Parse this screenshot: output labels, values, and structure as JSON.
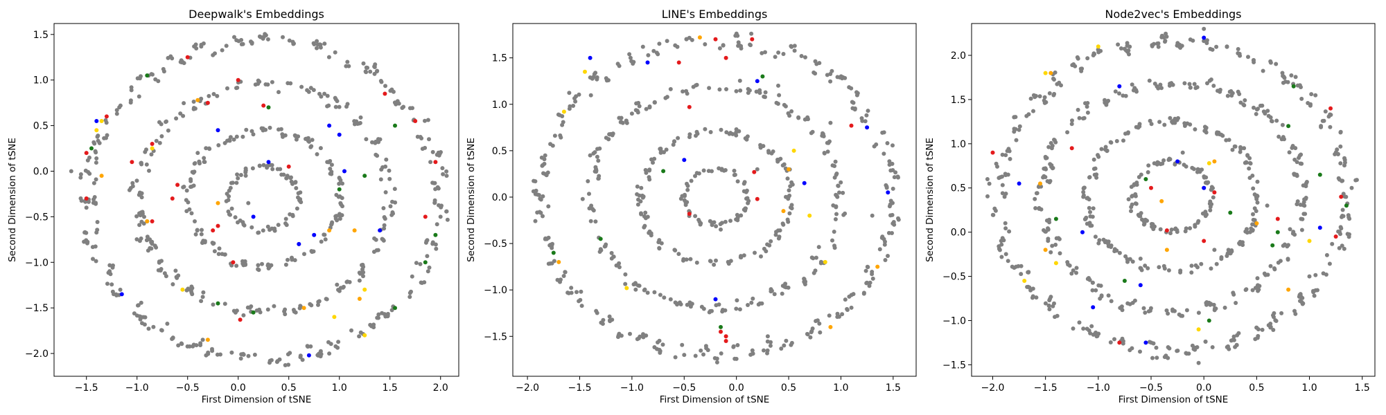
{
  "chart_data": [
    {
      "type": "scatter",
      "title": "Deepwalk's Embeddings",
      "xlabel": "First Dimension of tSNE",
      "ylabel": "Second Dimension of tSNE",
      "xlim": [
        -1.82,
        2.18
      ],
      "ylim": [
        -2.25,
        1.62
      ],
      "xticks": [
        -1.5,
        -1.0,
        -0.5,
        0.0,
        0.5,
        1.0,
        1.5,
        2.0
      ],
      "xtick_labels": [
        "−1.5",
        "−1.0",
        "−0.5",
        "0.0",
        "0.5",
        "1.0",
        "1.5",
        "2.0"
      ],
      "yticks": [
        -2.0,
        -1.5,
        -1.0,
        -0.5,
        0.0,
        0.5,
        1.0,
        1.5
      ],
      "ytick_labels": [
        "−2.0",
        "−1.5",
        "−1.0",
        "−0.5",
        "0.0",
        "0.5",
        "1.0",
        "1.5"
      ],
      "seed": 11,
      "rings": [
        {
          "radius": 1.75,
          "count": 150
        },
        {
          "radius": 1.25,
          "count": 115
        },
        {
          "radius": 0.75,
          "count": 75
        },
        {
          "radius": 0.35,
          "count": 40
        }
      ],
      "center": [
        0.25,
        -0.3
      ],
      "scale": [
        1.0,
        1.0
      ],
      "series": [
        {
          "color": "#808080",
          "points": [
            [
              -1.65,
              0.0
            ],
            [
              -1.5,
              -0.3
            ],
            [
              -1.5,
              -0.4
            ],
            [
              2.0,
              -0.5
            ],
            [
              1.9,
              0.1
            ],
            [
              0.55,
              1.4
            ],
            [
              0.9,
              -2.0
            ],
            [
              -0.35,
              -1.85
            ],
            [
              1.2,
              -1.2
            ],
            [
              0.6,
              -0.8
            ],
            [
              -0.9,
              -0.55
            ],
            [
              0.1,
              -0.35
            ],
            [
              -0.4,
              0.2
            ]
          ]
        },
        {
          "color": "#e41a1c",
          "points": [
            [
              0.0,
              1.0
            ],
            [
              -0.5,
              1.25
            ],
            [
              -1.3,
              0.6
            ],
            [
              -0.85,
              0.3
            ],
            [
              -1.5,
              0.2
            ],
            [
              -1.05,
              0.1
            ],
            [
              -0.6,
              -0.15
            ],
            [
              -0.85,
              -0.55
            ],
            [
              -0.25,
              -0.65
            ],
            [
              -0.2,
              -0.6
            ],
            [
              -0.05,
              -1.0
            ],
            [
              0.02,
              -1.63
            ],
            [
              0.5,
              0.05
            ],
            [
              0.25,
              0.72
            ],
            [
              1.95,
              0.1
            ],
            [
              1.75,
              0.55
            ],
            [
              1.85,
              -0.5
            ],
            [
              1.45,
              0.85
            ],
            [
              -0.3,
              0.75
            ],
            [
              -1.5,
              -0.3
            ],
            [
              -0.65,
              -0.3
            ]
          ]
        },
        {
          "color": "#0000ff",
          "points": [
            [
              -0.2,
              0.45
            ],
            [
              0.15,
              -0.5
            ],
            [
              0.3,
              0.1
            ],
            [
              0.9,
              0.5
            ],
            [
              1.0,
              0.4
            ],
            [
              1.4,
              -0.65
            ],
            [
              0.75,
              -0.7
            ],
            [
              0.7,
              -2.02
            ],
            [
              -1.4,
              0.55
            ],
            [
              -1.15,
              -1.35
            ],
            [
              0.6,
              -0.8
            ],
            [
              1.05,
              0.0
            ]
          ]
        },
        {
          "color": "#ffa500",
          "points": [
            [
              -1.35,
              -0.05
            ],
            [
              -0.2,
              -0.35
            ],
            [
              -0.9,
              -0.55
            ],
            [
              0.9,
              -0.65
            ],
            [
              1.15,
              -0.65
            ],
            [
              1.2,
              -1.4
            ],
            [
              -0.3,
              -1.85
            ],
            [
              0.65,
              -1.5
            ],
            [
              -0.4,
              0.78
            ]
          ]
        },
        {
          "color": "#ffd700",
          "points": [
            [
              -1.35,
              0.55
            ],
            [
              -0.85,
              0.25
            ],
            [
              1.25,
              -1.3
            ],
            [
              1.25,
              -1.8
            ],
            [
              0.95,
              -1.6
            ],
            [
              -0.55,
              -1.3
            ],
            [
              -1.4,
              0.45
            ]
          ]
        },
        {
          "color": "#1a7a1a",
          "points": [
            [
              -1.45,
              0.25
            ],
            [
              -0.2,
              -1.45
            ],
            [
              0.15,
              -1.55
            ],
            [
              1.0,
              -0.2
            ],
            [
              1.25,
              -0.05
            ],
            [
              1.55,
              0.5
            ],
            [
              1.55,
              -1.5
            ],
            [
              1.95,
              -0.7
            ],
            [
              1.85,
              -1.0
            ],
            [
              0.3,
              0.7
            ],
            [
              -0.9,
              1.05
            ]
          ]
        }
      ]
    },
    {
      "type": "scatter",
      "title": "LINE's Embeddings",
      "xlabel": "First Dimension of tSNE",
      "ylabel": "Second Dimension of tSNE",
      "xlim": [
        -2.14,
        1.72
      ],
      "ylim": [
        -1.93,
        1.87
      ],
      "xticks": [
        -2.0,
        -1.5,
        -1.0,
        -0.5,
        0.0,
        0.5,
        1.0,
        1.5
      ],
      "xtick_labels": [
        "−2.0",
        "−1.5",
        "−1.0",
        "−0.5",
        "0.0",
        "0.5",
        "1.0",
        "1.5"
      ],
      "yticks": [
        -1.5,
        -1.0,
        -0.5,
        0.0,
        0.5,
        1.0,
        1.5
      ],
      "ytick_labels": [
        "−1.5",
        "−1.0",
        "−0.5",
        "0.0",
        "0.5",
        "1.0",
        "1.5"
      ],
      "seed": 23,
      "rings": [
        {
          "radius": 1.7,
          "count": 145
        },
        {
          "radius": 1.2,
          "count": 105
        },
        {
          "radius": 0.72,
          "count": 70
        },
        {
          "radius": 0.3,
          "count": 35
        }
      ],
      "center": [
        -0.2,
        0.0
      ],
      "scale": [
        1.0,
        1.0
      ],
      "series": [
        {
          "color": "#808080",
          "points": [
            [
              -1.4,
              0.45
            ],
            [
              -1.0,
              0.9
            ],
            [
              0.4,
              1.2
            ],
            [
              0.9,
              0.8
            ],
            [
              1.3,
              -0.2
            ],
            [
              -0.5,
              -1.7
            ],
            [
              0.3,
              -1.5
            ],
            [
              -1.8,
              -0.1
            ],
            [
              -0.15,
              -0.35
            ],
            [
              0.2,
              0.3
            ]
          ]
        },
        {
          "color": "#e41a1c",
          "points": [
            [
              -0.1,
              1.5
            ],
            [
              -0.55,
              1.45
            ],
            [
              0.15,
              1.7
            ],
            [
              -0.2,
              1.7
            ],
            [
              1.1,
              0.77
            ],
            [
              0.2,
              -0.02
            ],
            [
              0.17,
              0.27
            ],
            [
              -0.1,
              -1.5
            ],
            [
              -0.15,
              -1.45
            ],
            [
              -0.45,
              0.97
            ],
            [
              -0.45,
              -0.18
            ],
            [
              -0.1,
              -1.55
            ]
          ]
        },
        {
          "color": "#0000ff",
          "points": [
            [
              -1.4,
              1.5
            ],
            [
              0.2,
              1.25
            ],
            [
              -0.5,
              0.4
            ],
            [
              -0.2,
              -1.1
            ],
            [
              1.25,
              0.75
            ],
            [
              1.45,
              0.05
            ],
            [
              0.65,
              0.15
            ],
            [
              -0.85,
              1.45
            ]
          ]
        },
        {
          "color": "#ffa500",
          "points": [
            [
              -0.35,
              1.72
            ],
            [
              0.45,
              -0.15
            ],
            [
              1.35,
              -0.75
            ],
            [
              0.9,
              -1.4
            ],
            [
              -1.7,
              -0.7
            ],
            [
              0.5,
              0.3
            ]
          ]
        },
        {
          "color": "#ffd700",
          "points": [
            [
              -1.65,
              0.92
            ],
            [
              0.7,
              -0.2
            ],
            [
              0.85,
              -0.7
            ],
            [
              -1.05,
              -0.98
            ],
            [
              0.55,
              0.5
            ],
            [
              -1.45,
              1.35
            ]
          ]
        },
        {
          "color": "#1a7a1a",
          "points": [
            [
              -1.3,
              -0.45
            ],
            [
              -1.75,
              -0.6
            ],
            [
              -0.7,
              0.28
            ],
            [
              0.25,
              1.3
            ],
            [
              -0.15,
              -1.4
            ]
          ]
        }
      ]
    },
    {
      "type": "scatter",
      "title": "Node2vec's Embeddings",
      "xlabel": "First Dimension of tSNE",
      "ylabel": "Second Dimension of tSNE",
      "xlim": [
        -2.2,
        1.62
      ],
      "ylim": [
        -1.63,
        2.36
      ],
      "xticks": [
        -2.0,
        -1.5,
        -1.0,
        -0.5,
        0.0,
        0.5,
        1.0,
        1.5
      ],
      "xtick_labels": [
        "−2.0",
        "−1.5",
        "−1.0",
        "−0.5",
        "0.0",
        "0.5",
        "1.0",
        "1.5"
      ],
      "yticks": [
        -1.5,
        -1.0,
        -0.5,
        0.0,
        0.5,
        1.0,
        1.5,
        2.0
      ],
      "ytick_labels": [
        "−1.5",
        "−1.0",
        "−0.5",
        "0.0",
        "0.5",
        "1.0",
        "1.5",
        "2.0"
      ],
      "seed": 37,
      "rings": [
        {
          "radius": 1.75,
          "count": 160
        },
        {
          "radius": 1.3,
          "count": 130
        },
        {
          "radius": 0.85,
          "count": 90
        },
        {
          "radius": 0.4,
          "count": 50
        }
      ],
      "center": [
        -0.3,
        0.4
      ],
      "scale": [
        0.95,
        1.0
      ],
      "series": [
        {
          "color": "#808080",
          "points": [
            [
              0.0,
              2.3
            ],
            [
              -0.05,
              -1.48
            ],
            [
              -2.05,
              0.6
            ],
            [
              1.4,
              0.5
            ],
            [
              0.0,
              0.5
            ],
            [
              -0.2,
              0.9
            ],
            [
              0.6,
              0.3
            ],
            [
              -0.6,
              -0.3
            ],
            [
              1.0,
              -0.5
            ],
            [
              0.1,
              -0.2
            ]
          ]
        },
        {
          "color": "#e41a1c",
          "points": [
            [
              1.2,
              1.4
            ],
            [
              -2.0,
              0.9
            ],
            [
              -1.25,
              0.95
            ],
            [
              -0.35,
              0.02
            ],
            [
              -0.8,
              -1.25
            ],
            [
              0.7,
              0.15
            ],
            [
              1.25,
              -0.05
            ],
            [
              -0.5,
              0.5
            ],
            [
              0.1,
              0.45
            ],
            [
              1.3,
              0.4
            ],
            [
              0.0,
              -0.1
            ]
          ]
        },
        {
          "color": "#0000ff",
          "points": [
            [
              0.0,
              2.2
            ],
            [
              -0.8,
              1.65
            ],
            [
              -1.75,
              0.55
            ],
            [
              -1.15,
              0.0
            ],
            [
              -0.6,
              -0.6
            ],
            [
              -0.55,
              -1.25
            ],
            [
              -1.05,
              -0.85
            ],
            [
              -0.25,
              0.8
            ],
            [
              1.1,
              0.05
            ],
            [
              0.0,
              0.5
            ]
          ]
        },
        {
          "color": "#ffa500",
          "points": [
            [
              -1.45,
              1.8
            ],
            [
              -1.55,
              0.55
            ],
            [
              -0.35,
              -0.2
            ],
            [
              -1.5,
              -0.2
            ],
            [
              0.8,
              -0.65
            ],
            [
              0.1,
              0.8
            ],
            [
              0.5,
              0.1
            ],
            [
              -0.4,
              0.35
            ]
          ]
        },
        {
          "color": "#ffd700",
          "points": [
            [
              -1.0,
              2.1
            ],
            [
              -1.5,
              1.8
            ],
            [
              1.0,
              -0.1
            ],
            [
              -1.4,
              -0.35
            ],
            [
              0.05,
              0.78
            ],
            [
              -1.7,
              -0.55
            ],
            [
              -0.05,
              -1.1
            ]
          ]
        },
        {
          "color": "#1a7a1a",
          "points": [
            [
              0.85,
              1.65
            ],
            [
              1.35,
              0.3
            ],
            [
              0.65,
              -0.15
            ],
            [
              -1.4,
              0.15
            ],
            [
              -0.75,
              -0.55
            ],
            [
              0.25,
              0.22
            ],
            [
              0.7,
              0.0
            ],
            [
              0.8,
              1.2
            ],
            [
              -0.55,
              0.6
            ],
            [
              0.05,
              -1.0
            ],
            [
              1.1,
              0.65
            ]
          ]
        }
      ]
    }
  ]
}
